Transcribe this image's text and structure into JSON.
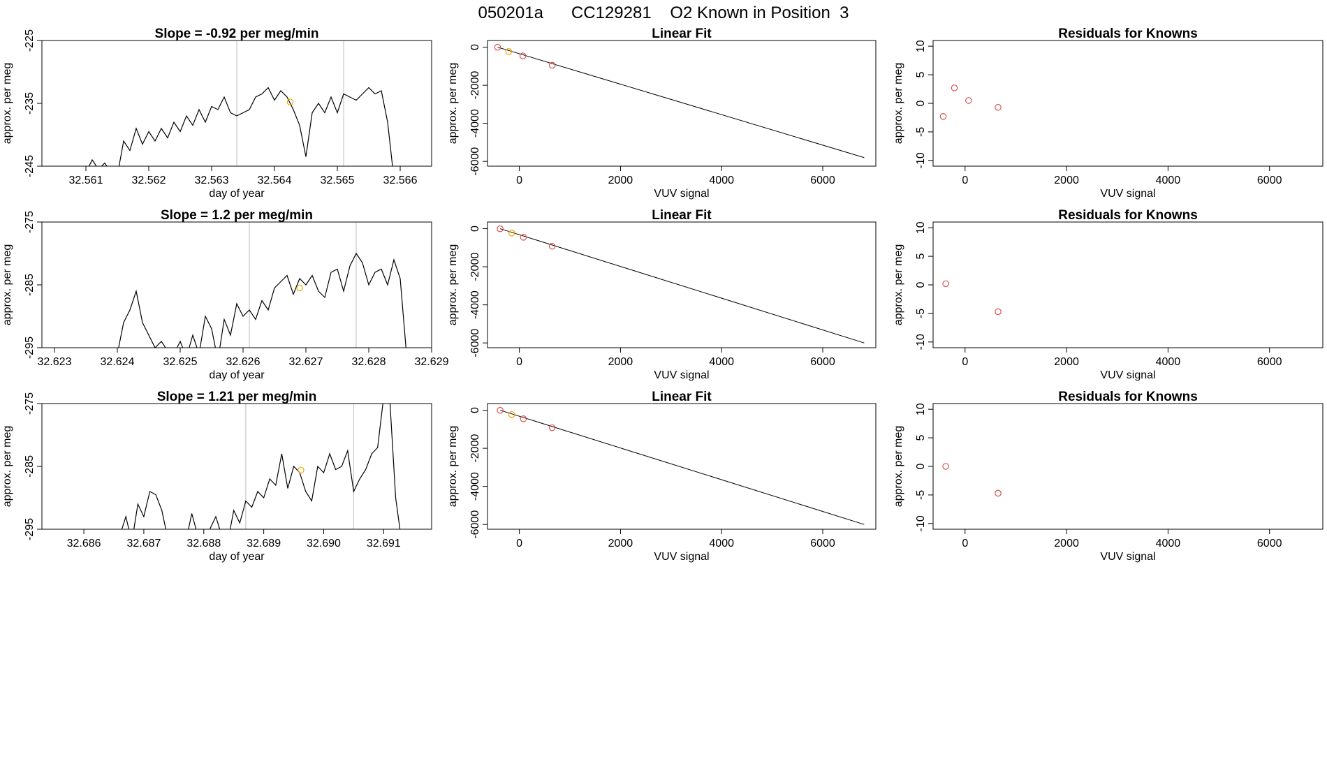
{
  "page_title": "050201a      CC129281    O2 Known in Position  3",
  "colors": {
    "line": "#000000",
    "known_point": "#d9534f",
    "sample_point": "#f0a500",
    "vline": "#bdbdbd",
    "frame": "#000000"
  },
  "chart_data": [
    {
      "type": "line",
      "row": 0,
      "col": 0,
      "title": "Slope =  -0.92  per meg/min",
      "xlabel": "day of year",
      "ylabel": "approx. per meg",
      "xlim": [
        32.5603,
        32.5665
      ],
      "ylim": [
        -245,
        -225
      ],
      "xticks": [
        32.561,
        32.562,
        32.563,
        32.564,
        32.565,
        32.566
      ],
      "xtick_labels": [
        "32.561",
        "32.562",
        "32.563",
        "32.564",
        "32.565",
        "32.566"
      ],
      "yticks": [
        -245,
        -235,
        -225
      ],
      "ytick_labels": [
        "-245",
        "-235",
        "-225"
      ],
      "vlines": [
        32.5634,
        32.5651
      ],
      "series": [
        {
          "x": [
            32.561,
            32.5611,
            32.5612,
            32.5613,
            32.5614,
            32.5615,
            32.5616,
            32.5617,
            32.5618,
            32.5619,
            32.562,
            32.5621,
            32.5622,
            32.5623,
            32.5624,
            32.5625,
            32.5626,
            32.5627,
            32.5628,
            32.5629,
            32.563,
            32.5631,
            32.5632,
            32.5633,
            32.5634,
            32.5635,
            32.5636,
            32.5637,
            32.5638,
            32.5639,
            32.564,
            32.5641,
            32.5642,
            32.5643,
            32.5644,
            32.5645,
            32.5646,
            32.5647,
            32.5648,
            32.5649,
            32.565,
            32.5651,
            32.5652,
            32.5653,
            32.5654,
            32.5655,
            32.5656,
            32.5657,
            32.5658,
            32.5659
          ],
          "y": [
            -246,
            -244,
            -245.5,
            -244.5,
            -246,
            -246.5,
            -241,
            -242.5,
            -239,
            -241.5,
            -239.5,
            -241,
            -239,
            -240.5,
            -238,
            -239.5,
            -237,
            -238.5,
            -236,
            -238,
            -235.5,
            -236,
            -234,
            -236.5,
            -237,
            -236.5,
            -236,
            -234,
            -233.5,
            -232.5,
            -234.5,
            -233,
            -234,
            -236,
            -238.5,
            -243.5,
            -236.5,
            -235,
            -236.5,
            -234,
            -236.5,
            -233.5,
            -234,
            -234.5,
            -233.5,
            -232.5,
            -233.5,
            -233,
            -238,
            -247
          ]
        }
      ],
      "points": [
        {
          "x": 32.56425,
          "y": -234.8,
          "kind": "sample"
        }
      ]
    },
    {
      "type": "scatter",
      "row": 0,
      "col": 1,
      "title": "Linear Fit",
      "xlabel": "VUV signal",
      "ylabel": "approx. per meg",
      "xlim": [
        -630,
        7050
      ],
      "ylim": [
        -6250,
        350
      ],
      "xticks": [
        0,
        2000,
        4000,
        6000
      ],
      "xtick_labels": [
        "0",
        "2000",
        "4000",
        "6000"
      ],
      "yticks": [
        -6000,
        -4000,
        -2000,
        0
      ],
      "ytick_labels": [
        "-6000",
        "-4000",
        "-2000",
        "0"
      ],
      "fit_line": [
        [
          -430,
          0
        ],
        [
          6820,
          -5800
        ]
      ],
      "points": [
        {
          "x": -430,
          "y": -5,
          "kind": "known"
        },
        {
          "x": -210,
          "y": -230,
          "kind": "sample"
        },
        {
          "x": 70,
          "y": -460,
          "kind": "known"
        },
        {
          "x": 650,
          "y": -950,
          "kind": "known"
        }
      ]
    },
    {
      "type": "scatter",
      "row": 0,
      "col": 2,
      "title": "Residuals for Knowns",
      "xlabel": "VUV signal",
      "ylabel": "approx. per meg",
      "xlim": [
        -630,
        7050
      ],
      "ylim": [
        -11,
        11
      ],
      "xticks": [
        0,
        2000,
        4000,
        6000
      ],
      "xtick_labels": [
        "0",
        "2000",
        "4000",
        "6000"
      ],
      "yticks": [
        -10,
        -5,
        0,
        5,
        10
      ],
      "ytick_labels": [
        "-10",
        "-5",
        "0",
        "5",
        "10"
      ],
      "points": [
        {
          "x": -430,
          "y": -2.3,
          "kind": "known"
        },
        {
          "x": -210,
          "y": 2.7,
          "kind": "known"
        },
        {
          "x": 70,
          "y": 0.5,
          "kind": "known"
        },
        {
          "x": 650,
          "y": -0.7,
          "kind": "known"
        }
      ]
    },
    {
      "type": "line",
      "row": 1,
      "col": 0,
      "title": "Slope =  1.2  per meg/min",
      "xlabel": "day of year",
      "ylabel": "approx. per meg",
      "xlim": [
        32.6228,
        32.629
      ],
      "ylim": [
        -295,
        -275
      ],
      "xticks": [
        32.623,
        32.624,
        32.625,
        32.626,
        32.627,
        32.628,
        32.629
      ],
      "xtick_labels": [
        "32.623",
        "32.624",
        "32.625",
        "32.626",
        "32.627",
        "32.628",
        "32.629"
      ],
      "yticks": [
        -295,
        -285,
        -275
      ],
      "ytick_labels": [
        "-295",
        "-285",
        "-275"
      ],
      "vlines": [
        32.6261,
        32.6278
      ],
      "series": [
        {
          "x": [
            32.624,
            32.6241,
            32.6242,
            32.6243,
            32.6244,
            32.6245,
            32.6246,
            32.6247,
            32.6248,
            32.6249,
            32.625,
            32.6251,
            32.6252,
            32.6253,
            32.6254,
            32.6255,
            32.6256,
            32.6257,
            32.6258,
            32.6259,
            32.626,
            32.6261,
            32.6262,
            32.6263,
            32.6264,
            32.6265,
            32.6266,
            32.6267,
            32.6268,
            32.6269,
            32.627,
            32.6271,
            32.6272,
            32.6273,
            32.6274,
            32.6275,
            32.6276,
            32.6277,
            32.6278,
            32.6279,
            32.628,
            32.6281,
            32.6282,
            32.6283,
            32.6284,
            32.6285,
            32.6286
          ],
          "y": [
            -296,
            -291,
            -289,
            -286,
            -291,
            -293,
            -295,
            -294,
            -295.5,
            -296,
            -294,
            -296.5,
            -293,
            -296,
            -290,
            -292,
            -297,
            -290.5,
            -293,
            -288,
            -290,
            -289,
            -290.5,
            -287.5,
            -289,
            -285.5,
            -284.5,
            -283.5,
            -286.5,
            -284,
            -285,
            -283.5,
            -286,
            -287,
            -283,
            -282.5,
            -286,
            -282,
            -280,
            -281.5,
            -285,
            -283,
            -282.5,
            -285,
            -281,
            -284,
            -296
          ]
        }
      ],
      "points": [
        {
          "x": 32.6269,
          "y": -285.5,
          "kind": "sample"
        }
      ]
    },
    {
      "type": "scatter",
      "row": 1,
      "col": 1,
      "title": "Linear Fit",
      "xlabel": "VUV signal",
      "ylabel": "approx. per meg",
      "xlim": [
        -630,
        7050
      ],
      "ylim": [
        -6250,
        350
      ],
      "xticks": [
        0,
        2000,
        4000,
        6000
      ],
      "xtick_labels": [
        "0",
        "2000",
        "4000",
        "6000"
      ],
      "yticks": [
        -6000,
        -4000,
        -2000,
        0
      ],
      "ytick_labels": [
        "-6000",
        "-4000",
        "-2000",
        "0"
      ],
      "fit_line": [
        [
          -380,
          0
        ],
        [
          6820,
          -6000
        ]
      ],
      "points": [
        {
          "x": -380,
          "y": -5,
          "kind": "known"
        },
        {
          "x": -150,
          "y": -230,
          "kind": "sample"
        },
        {
          "x": 80,
          "y": -450,
          "kind": "known"
        },
        {
          "x": 650,
          "y": -920,
          "kind": "known"
        }
      ]
    },
    {
      "type": "scatter",
      "row": 1,
      "col": 2,
      "title": "Residuals for Knowns",
      "xlabel": "VUV signal",
      "ylabel": "approx. per meg",
      "xlim": [
        -630,
        7050
      ],
      "ylim": [
        -11,
        11
      ],
      "xticks": [
        0,
        2000,
        4000,
        6000
      ],
      "xtick_labels": [
        "0",
        "2000",
        "4000",
        "6000"
      ],
      "yticks": [
        -10,
        -5,
        0,
        5,
        10
      ],
      "ytick_labels": [
        "-10",
        "-5",
        "0",
        "5",
        "10"
      ],
      "points": [
        {
          "x": -380,
          "y": 0.2,
          "kind": "known"
        },
        {
          "x": 650,
          "y": -4.7,
          "kind": "known"
        }
      ]
    },
    {
      "type": "line",
      "row": 2,
      "col": 0,
      "title": "Slope =  1.21  per meg/min",
      "xlabel": "day of year",
      "ylabel": "approx. per meg",
      "xlim": [
        32.6853,
        32.6918
      ],
      "ylim": [
        -295,
        -275
      ],
      "xticks": [
        32.686,
        32.687,
        32.688,
        32.689,
        32.69,
        32.691
      ],
      "xtick_labels": [
        "32.686",
        "32.687",
        "32.688",
        "32.689",
        "32.690",
        "32.691"
      ],
      "yticks": [
        -295,
        -285,
        -275
      ],
      "ytick_labels": [
        "-295",
        "-285",
        "-275"
      ],
      "vlines": [
        32.6887,
        32.6905
      ],
      "series": [
        {
          "x": [
            32.6866,
            32.6867,
            32.6868,
            32.6869,
            32.687,
            32.6871,
            32.6872,
            32.6873,
            32.6874,
            32.6875,
            32.6876,
            32.6877,
            32.6878,
            32.6879,
            32.688,
            32.6881,
            32.6882,
            32.6883,
            32.6884,
            32.6885,
            32.6886,
            32.6887,
            32.6888,
            32.6889,
            32.689,
            32.6891,
            32.6892,
            32.6893,
            32.6894,
            32.6895,
            32.6896,
            32.6897,
            32.6898,
            32.6899,
            32.69,
            32.6901,
            32.6902,
            32.6903,
            32.6904,
            32.6905,
            32.6906,
            32.6907,
            32.6908,
            32.6909,
            32.691,
            32.6911,
            32.6912,
            32.6913
          ],
          "y": [
            -296,
            -293,
            -297,
            -291,
            -293,
            -289,
            -289.5,
            -292,
            -296.5,
            -297,
            -296.5,
            -297,
            -292.5,
            -296,
            -296.5,
            -295,
            -293,
            -296,
            -297,
            -292,
            -294,
            -290.5,
            -291.5,
            -289,
            -290,
            -287,
            -288,
            -283,
            -288.5,
            -285,
            -286,
            -289,
            -290.5,
            -285,
            -286,
            -283,
            -285.5,
            -285,
            -282.5,
            -289,
            -287,
            -285.5,
            -283,
            -282,
            -274,
            -274,
            -290,
            -297
          ]
        }
      ],
      "points": [
        {
          "x": 32.68962,
          "y": -285.6,
          "kind": "sample"
        }
      ]
    },
    {
      "type": "scatter",
      "row": 2,
      "col": 1,
      "title": "Linear Fit",
      "xlabel": "VUV signal",
      "ylabel": "approx. per meg",
      "xlim": [
        -630,
        7050
      ],
      "ylim": [
        -6250,
        350
      ],
      "xticks": [
        0,
        2000,
        4000,
        6000
      ],
      "xtick_labels": [
        "0",
        "2000",
        "4000",
        "6000"
      ],
      "yticks": [
        -6000,
        -4000,
        -2000,
        0
      ],
      "ytick_labels": [
        "-6000",
        "-4000",
        "-2000",
        "0"
      ],
      "fit_line": [
        [
          -380,
          0
        ],
        [
          6820,
          -6000
        ]
      ],
      "points": [
        {
          "x": -380,
          "y": -5,
          "kind": "known"
        },
        {
          "x": -150,
          "y": -230,
          "kind": "sample"
        },
        {
          "x": 80,
          "y": -450,
          "kind": "known"
        },
        {
          "x": 650,
          "y": -920,
          "kind": "known"
        }
      ]
    },
    {
      "type": "scatter",
      "row": 2,
      "col": 2,
      "title": "Residuals for Knowns",
      "xlabel": "VUV signal",
      "ylabel": "approx. per meg",
      "xlim": [
        -630,
        7050
      ],
      "ylim": [
        -11,
        11
      ],
      "xticks": [
        0,
        2000,
        4000,
        6000
      ],
      "xtick_labels": [
        "0",
        "2000",
        "4000",
        "6000"
      ],
      "yticks": [
        -10,
        -5,
        0,
        5,
        10
      ],
      "ytick_labels": [
        "-10",
        "-5",
        "0",
        "5",
        "10"
      ],
      "points": [
        {
          "x": -380,
          "y": 0.0,
          "kind": "known"
        },
        {
          "x": 650,
          "y": -4.7,
          "kind": "known"
        }
      ]
    }
  ]
}
